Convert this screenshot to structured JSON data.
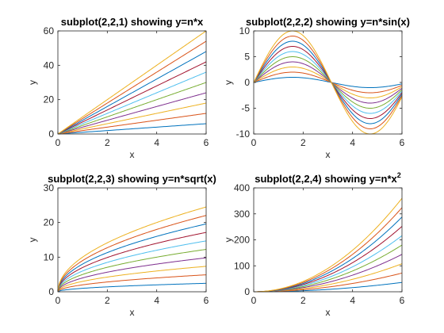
{
  "n_values": [
    1,
    2,
    3,
    4,
    5,
    6,
    7,
    8,
    9,
    10
  ],
  "series_colors": [
    "#0072BD",
    "#D95319",
    "#EDB120",
    "#7E2F8E",
    "#77AC30",
    "#4DBEEE",
    "#A2142F",
    "#0072BD",
    "#D95319",
    "#EDB120"
  ],
  "chart_data": [
    {
      "type": "line",
      "title": "subplot(2,2,1) showing y=n*x",
      "formula": "n*x",
      "xlabel": "x",
      "ylabel": "y",
      "xlim": [
        0,
        6
      ],
      "ylim": [
        0,
        60
      ],
      "xticks": [
        0,
        2,
        4,
        6
      ],
      "yticks": [
        0,
        20,
        40,
        60
      ],
      "x": [
        0,
        6
      ]
    },
    {
      "type": "line",
      "title": "subplot(2,2,2) showing y=n*sin(x)",
      "formula": "n*sin(x)",
      "xlabel": "x",
      "ylabel": "y",
      "xlim": [
        0,
        6
      ],
      "ylim": [
        -10,
        10
      ],
      "xticks": [
        0,
        2,
        4,
        6
      ],
      "yticks": [
        -10,
        -5,
        0,
        5,
        10
      ],
      "x": [
        0,
        6
      ]
    },
    {
      "type": "line",
      "title": "subplot(2,2,3) showing y=n*sqrt(x)",
      "formula": "n*sqrt(x)",
      "xlabel": "x",
      "ylabel": "y",
      "xlim": [
        0,
        6
      ],
      "ylim": [
        0,
        30
      ],
      "xticks": [
        0,
        2,
        4,
        6
      ],
      "yticks": [
        0,
        10,
        20,
        30
      ],
      "x": [
        0,
        6
      ]
    },
    {
      "type": "line",
      "title": "subplot(2,2,4) showing y=n*x",
      "title_superscript": "2",
      "formula": "n*x^2",
      "xlabel": "x",
      "ylabel": "y",
      "xlim": [
        0,
        6
      ],
      "ylim": [
        0,
        400
      ],
      "xticks": [
        0,
        2,
        4,
        6
      ],
      "yticks": [
        0,
        100,
        200,
        300,
        400
      ],
      "x": [
        0,
        6
      ]
    }
  ]
}
